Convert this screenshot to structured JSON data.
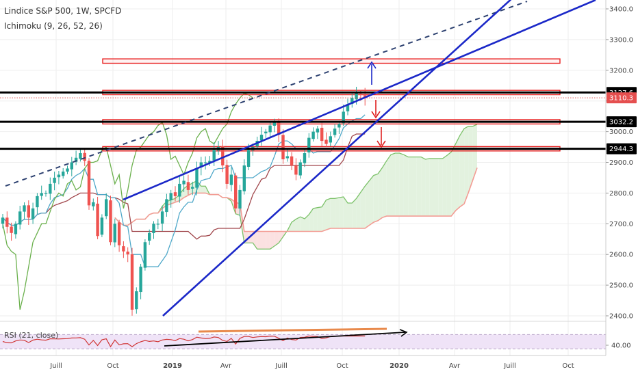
{
  "legend": {
    "title": "Lindice S&P 500, 1W, SPCFD",
    "ichimoku": "Ichimoku (9, 26, 52, 26)",
    "rsi": "RSI (21, close)"
  },
  "colors": {
    "background": "#ffffff",
    "grid": "#eeeeee",
    "candle_up": "#26a69a",
    "candle_down": "#ef5350",
    "tenkan": "#4fa8c9",
    "kijun": "#a0454a",
    "chikou": "#6ab04c",
    "senkou_a": "#7cc26a",
    "senkou_b": "#f39c94",
    "kumo_bull": "#e3f2df",
    "kumo_bear": "#fbe1e1",
    "trendline": "#1b28c8",
    "dashed_trend": "#2d4170",
    "support_line": "#000000",
    "zone_outline": "#e82020",
    "arrow_up": "#1b28c8",
    "arrow_down": "#e02020",
    "rsi_line": "#d03535",
    "rsi_band": "#efe3f7",
    "rsi_orange": "#e8894b",
    "price_tag": "#e54f4f"
  },
  "price_axis": {
    "ticks": [
      "3400.0",
      "3300.0",
      "3200.0",
      "3100.0",
      "3000.0",
      "2900.0",
      "2800.0",
      "2700.0",
      "2600.0",
      "2500.0",
      "2400.0"
    ],
    "tick_values": [
      3400,
      3300,
      3200,
      3100,
      3000,
      2900,
      2800,
      2700,
      2600,
      2500,
      2400
    ],
    "range": [
      2385,
      3440
    ],
    "tags": [
      {
        "label": "3127.6",
        "value": 3127.6,
        "style": "black"
      },
      {
        "label": "3110.3",
        "value": 3110.3,
        "style": "red"
      },
      {
        "label": "3032.2",
        "value": 3032.2,
        "style": "black"
      },
      {
        "label": "2944.3",
        "value": 2944.3,
        "style": "black"
      }
    ]
  },
  "rsi_axis": {
    "tick": "40.00",
    "tick_value": 40,
    "range": [
      25,
      75
    ],
    "band": [
      30,
      70
    ]
  },
  "time_axis": {
    "labels": [
      "Juill",
      "Oct",
      "2019",
      "Avr",
      "Juill",
      "Oct",
      "2020",
      "Avr",
      "Juill",
      "Oct"
    ],
    "bold": [
      false,
      false,
      true,
      false,
      false,
      false,
      true,
      false,
      false,
      false
    ],
    "dates": [
      "2018-07-01",
      "2018-10-01",
      "2019-01-01",
      "2019-04-01",
      "2019-07-01",
      "2019-10-01",
      "2020-01-01",
      "2020-04-01",
      "2020-07-01",
      "2020-10-01"
    ]
  },
  "chart_data": {
    "type": "candlestick",
    "title": "Lindice S&P 500, 1W, SPCFD",
    "indicators": [
      "Ichimoku (9, 26, 52, 26)",
      "RSI (21, close)"
    ],
    "weekly_close": [
      2720,
      2690,
      2670,
      2700,
      2740,
      2760,
      2720,
      2750,
      2790,
      2800,
      2800,
      2830,
      2850,
      2860,
      2870,
      2880,
      2900,
      2915,
      2930,
      2905,
      2760,
      2770,
      2660,
      2720,
      2780,
      2640,
      2700,
      2630,
      2610,
      2600,
      2420,
      2480,
      2560,
      2640,
      2670,
      2700,
      2700,
      2740,
      2780,
      2800,
      2790,
      2830,
      2840,
      2810,
      2820,
      2880,
      2900,
      2900,
      2905,
      2940,
      2950,
      2890,
      2830,
      2860,
      2750,
      2810,
      2890,
      2940,
      2950,
      2970,
      2990,
      3000,
      3020,
      3030,
      2990,
      2910,
      2920,
      2890,
      2860,
      2900,
      2930,
      2980,
      3000,
      3010,
      2970,
      2960,
      2985,
      3010,
      3025,
      3065,
      3090,
      3110,
      3125,
      3120,
      3110
    ],
    "levels": {
      "support_lines": [
        3127.6,
        3032.2,
        2944.3
      ],
      "zones": [
        3230,
        3127.6,
        3032.2,
        2944.3
      ]
    },
    "x_range": [
      "2018-04-23",
      "2020-11-30"
    ],
    "grid": true,
    "legend_position": "top-left"
  }
}
